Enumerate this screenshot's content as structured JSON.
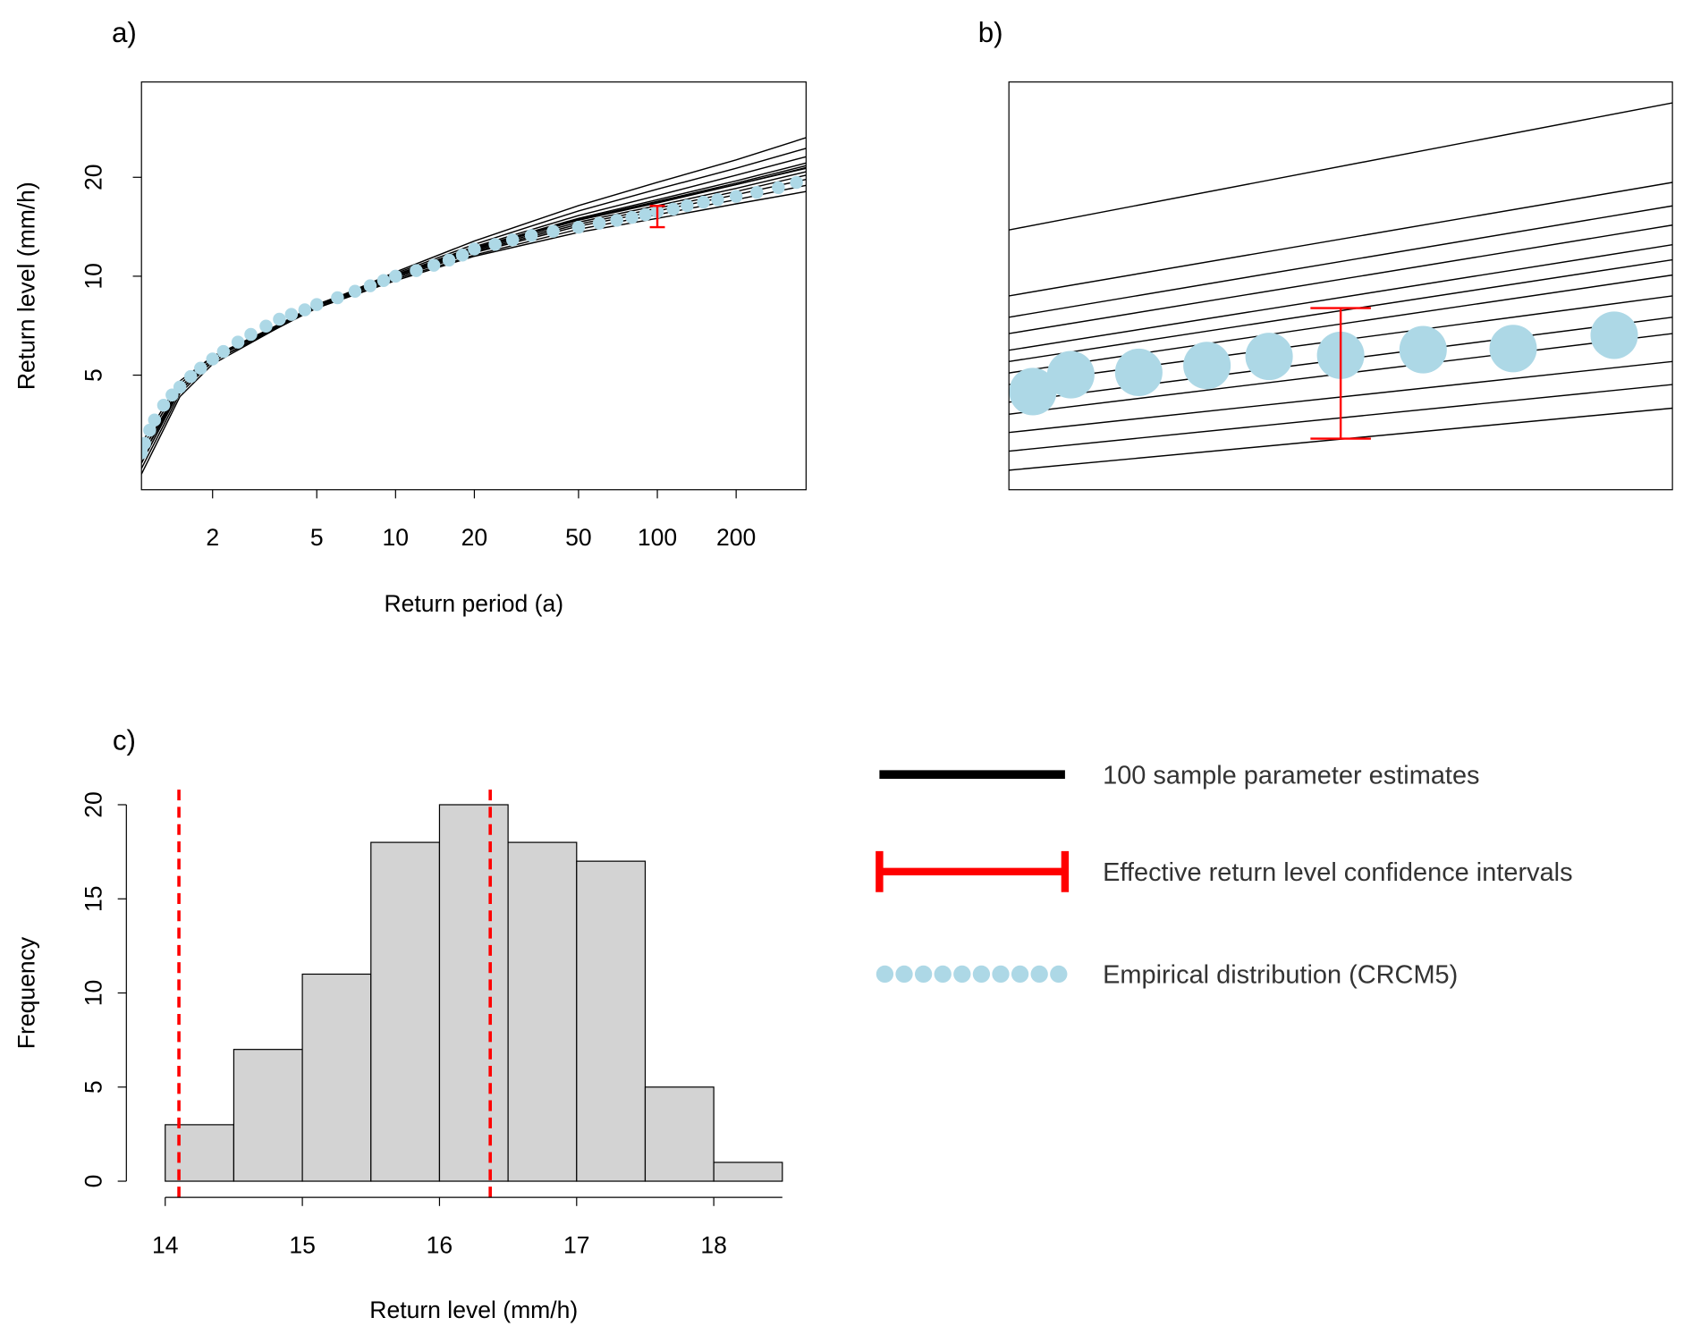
{
  "chart_data": [
    {
      "type": "line",
      "title": "a)",
      "x_label": "Return period (a)",
      "y_label": "Return level (mm/h)",
      "x_log": true,
      "y_log": true,
      "xlim": [
        1.07,
        370
      ],
      "ylim": [
        2.24,
        39
      ],
      "xticks": [
        2,
        5,
        10,
        20,
        50,
        100,
        200
      ],
      "yticks": [
        5,
        10,
        20
      ],
      "x": [
        1.07,
        1.5,
        2,
        5,
        10,
        20,
        50,
        100,
        200,
        370
      ],
      "series": [
        {
          "color": "#000000",
          "values": [
            2.5,
            4.3,
            5.4,
            8.1,
            10.3,
            12.8,
            16.4,
            19.3,
            22.6,
            26.4
          ]
        },
        {
          "color": "#000000",
          "values": [
            2.6,
            4.4,
            5.5,
            8.1,
            10.2,
            12.5,
            15.8,
            18.4,
            21.3,
            24.5
          ]
        },
        {
          "color": "#000000",
          "values": [
            2.7,
            4.5,
            5.5,
            8.1,
            10.1,
            12.3,
            15.3,
            17.6,
            20.3,
            23.1
          ]
        },
        {
          "color": "#000000",
          "values": [
            2.8,
            4.5,
            5.6,
            8.1,
            10.1,
            12.2,
            15.0,
            17.1,
            19.5,
            22.1
          ]
        },
        {
          "color": "#000000",
          "values": [
            2.8,
            4.6,
            5.6,
            8.1,
            10.0,
            12.1,
            14.8,
            16.7,
            19.0,
            21.4
          ]
        },
        {
          "color": "#000000",
          "values": [
            2.9,
            4.6,
            5.6,
            8.1,
            10.0,
            12.0,
            14.6,
            16.4,
            18.5,
            20.8
          ]
        },
        {
          "color": "#000000",
          "values": [
            2.9,
            4.6,
            5.6,
            8.1,
            10.0,
            11.9,
            14.4,
            16.1,
            18.1,
            20.3
          ]
        },
        {
          "color": "#000000",
          "values": [
            3.0,
            4.7,
            5.7,
            8.1,
            9.9,
            11.8,
            14.2,
            15.8,
            17.7,
            19.7
          ]
        },
        {
          "color": "#000000",
          "values": [
            3.0,
            4.7,
            5.7,
            8.0,
            9.8,
            11.6,
            13.9,
            15.4,
            17.1,
            18.9
          ]
        },
        {
          "color": "#000000",
          "values": [
            3.1,
            4.8,
            5.7,
            8.0,
            9.7,
            11.5,
            13.6,
            15.0,
            16.6,
            18.1
          ]
        },
        {
          "color": "#000000",
          "values": [
            2.7,
            4.5,
            5.5,
            8.0,
            10.0,
            12.1,
            14.9,
            16.9,
            19.2,
            21.7
          ]
        },
        {
          "color": "#000000",
          "values": [
            2.9,
            4.6,
            5.6,
            8.2,
            10.1,
            12.2,
            14.9,
            16.8,
            19.0,
            21.3
          ]
        }
      ],
      "points": {
        "color": "#add8e6",
        "x": [
          1.07,
          1.1,
          1.15,
          1.2,
          1.3,
          1.4,
          1.5,
          1.65,
          1.8,
          2,
          2.2,
          2.5,
          2.8,
          3.2,
          3.6,
          4,
          4.5,
          5,
          6,
          7,
          8,
          9,
          10,
          12,
          14,
          16,
          18,
          20,
          24,
          28,
          33,
          40,
          50,
          60,
          70,
          80,
          90,
          100,
          115,
          130,
          150,
          170,
          200,
          240,
          290,
          340
        ],
        "y": [
          2.9,
          3.1,
          3.4,
          3.65,
          4.05,
          4.35,
          4.6,
          4.95,
          5.25,
          5.6,
          5.9,
          6.3,
          6.65,
          7.05,
          7.4,
          7.65,
          7.9,
          8.2,
          8.6,
          9.0,
          9.35,
          9.7,
          10.0,
          10.4,
          10.8,
          11.2,
          11.6,
          12.1,
          12.5,
          12.9,
          13.3,
          13.7,
          14.1,
          14.5,
          14.8,
          15.1,
          15.4,
          15.7,
          16.0,
          16.4,
          16.8,
          17.1,
          17.5,
          18.0,
          18.6,
          19.3
        ]
      },
      "errorbar": {
        "color": "#ff0000",
        "x": 100,
        "low": 14.1,
        "high": 16.37
      }
    },
    {
      "type": "line",
      "title": "b)",
      "x_log": true,
      "y_log": true,
      "xlim": [
        80,
        125
      ],
      "ylim": [
        13.3,
        21.2
      ],
      "x": [
        80,
        125
      ],
      "series": [
        {
          "color": "#000000",
          "values": [
            17.9,
            20.7
          ]
        },
        {
          "color": "#000000",
          "values": [
            16.6,
            18.9
          ]
        },
        {
          "color": "#000000",
          "values": [
            16.2,
            18.4
          ]
        },
        {
          "color": "#000000",
          "values": [
            15.9,
            18.0
          ]
        },
        {
          "color": "#000000",
          "values": [
            15.6,
            17.6
          ]
        },
        {
          "color": "#000000",
          "values": [
            15.4,
            17.3
          ]
        },
        {
          "color": "#000000",
          "values": [
            15.2,
            17.0
          ]
        },
        {
          "color": "#000000",
          "values": [
            15.0,
            16.6
          ]
        },
        {
          "color": "#000000",
          "values": [
            14.7,
            16.2
          ]
        },
        {
          "color": "#000000",
          "values": [
            14.5,
            15.9
          ]
        },
        {
          "color": "#000000",
          "values": [
            14.2,
            15.4
          ]
        },
        {
          "color": "#000000",
          "values": [
            13.9,
            15.0
          ]
        },
        {
          "color": "#000000",
          "values": [
            13.6,
            14.6
          ]
        }
      ],
      "points": {
        "color": "#add8e6",
        "size": "large",
        "x": [
          81.3,
          83.4,
          87.3,
          91.4,
          95.3,
          100,
          105.7,
          112.3,
          120.2
        ],
        "y": [
          14.88,
          15.17,
          15.21,
          15.33,
          15.49,
          15.51,
          15.61,
          15.63,
          15.87
        ]
      },
      "errorbar": {
        "color": "#ff0000",
        "x": 100,
        "low": 14.1,
        "high": 16.37
      }
    },
    {
      "type": "histogram",
      "title": "c)",
      "x_label": "Return level (mm/h)",
      "y_label": "Frequency",
      "bins": [
        14,
        14.5,
        15,
        15.5,
        16,
        16.5,
        17,
        17.5,
        18,
        18.5
      ],
      "values": [
        3,
        7,
        11,
        18,
        20,
        18,
        17,
        5,
        1
      ],
      "color": "#d3d3d3",
      "xlim": [
        14,
        18.5
      ],
      "ylim": [
        0,
        20
      ],
      "xticks": [
        14,
        15,
        16,
        17,
        18
      ],
      "yticks": [
        0,
        5,
        10,
        15,
        20
      ],
      "vlines": {
        "color": "#ff0000",
        "values": [
          14.1,
          16.37
        ]
      }
    }
  ],
  "figure_legend": {
    "items": [
      {
        "label": "100 sample parameter estimates",
        "color": "#000000",
        "marker": "line"
      },
      {
        "label": "Effective return level confidence intervals",
        "color": "#ff0000",
        "marker": "errorbar"
      },
      {
        "label": "Empirical distribution (CRCM5)",
        "color": "#add8e6",
        "marker": "dots"
      }
    ]
  }
}
